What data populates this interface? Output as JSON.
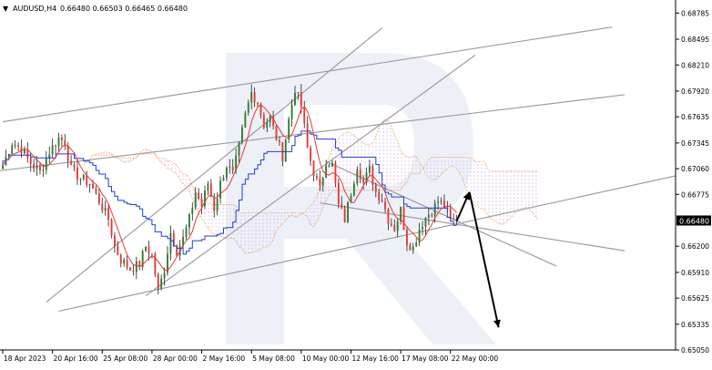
{
  "header": {
    "menu_glyph": "▼",
    "symbol_timeframe": "AUDUSD,H4",
    "ohlc": "0.66480 0.66503 0.66465 0.66480"
  },
  "price_axis": {
    "ticks": [
      "0.68785",
      "0.68495",
      "0.68210",
      "0.67920",
      "0.67635",
      "0.67345",
      "0.67060",
      "0.66775",
      "0.66200",
      "0.65910",
      "0.65625",
      "0.65335",
      "0.65050"
    ],
    "current_price_label": "0.66480"
  },
  "time_axis": {
    "ticks": [
      "18 Apr 2023",
      "20 Apr 16:00",
      "25 Apr 08:00",
      "28 Apr 00:00",
      "2 May 16:00",
      "5 May 08:00",
      "10 May 00:00",
      "12 May 16:00",
      "17 May 08:00",
      "22 May 00:00"
    ]
  },
  "colors": {
    "bull_candle": "#2e7d32",
    "bear_candle": "#e53935",
    "fast_ma": "#e53935",
    "slow_ma": "#1f3fd6",
    "cloud": "#f4a460",
    "cloud_dots": "#c8a8d8",
    "trend_lines": "#9e9e9e",
    "watermark": "#e3e8f2",
    "forecast_arrow": "#000000"
  },
  "chart_data": {
    "type": "candlestick",
    "symbol": "AUDUSD",
    "timeframe": "H4",
    "ylim": [
      0.6505,
      0.6893
    ],
    "x_ticks": [
      "18 Apr 2023",
      "20 Apr 16:00",
      "25 Apr 08:00",
      "28 Apr 00:00",
      "2 May 16:00",
      "5 May 08:00",
      "10 May 00:00",
      "12 May 16:00",
      "17 May 08:00",
      "22 May 00:00"
    ],
    "close_path": [
      [
        0,
        0.671
      ],
      [
        3,
        0.6735
      ],
      [
        6,
        0.6728
      ],
      [
        9,
        0.6712
      ],
      [
        12,
        0.6702
      ],
      [
        15,
        0.6725
      ],
      [
        18,
        0.674
      ],
      [
        20,
        0.6735
      ],
      [
        22,
        0.6705
      ],
      [
        25,
        0.6695
      ],
      [
        28,
        0.669
      ],
      [
        31,
        0.667
      ],
      [
        34,
        0.665
      ],
      [
        36,
        0.662
      ],
      [
        38,
        0.6605
      ],
      [
        41,
        0.6595
      ],
      [
        44,
        0.66
      ],
      [
        46,
        0.662
      ],
      [
        48,
        0.661
      ],
      [
        50,
        0.657
      ],
      [
        52,
        0.6595
      ],
      [
        54,
        0.6635
      ],
      [
        56,
        0.6615
      ],
      [
        58,
        0.6628
      ],
      [
        60,
        0.665
      ],
      [
        62,
        0.668
      ],
      [
        64,
        0.6665
      ],
      [
        66,
        0.669
      ],
      [
        68,
        0.6662
      ],
      [
        70,
        0.669
      ],
      [
        72,
        0.671
      ],
      [
        74,
        0.67
      ],
      [
        76,
        0.673
      ],
      [
        78,
        0.6765
      ],
      [
        80,
        0.679
      ],
      [
        82,
        0.678
      ],
      [
        84,
        0.6755
      ],
      [
        86,
        0.6762
      ],
      [
        88,
        0.674
      ],
      [
        90,
        0.672
      ],
      [
        92,
        0.676
      ],
      [
        94,
        0.6795
      ],
      [
        96,
        0.6775
      ],
      [
        98,
        0.6728
      ],
      [
        100,
        0.6702
      ],
      [
        102,
        0.6682
      ],
      [
        104,
        0.6715
      ],
      [
        106,
        0.671
      ],
      [
        108,
        0.6665
      ],
      [
        110,
        0.665
      ],
      [
        112,
        0.668
      ],
      [
        114,
        0.671
      ],
      [
        116,
        0.669
      ],
      [
        118,
        0.6705
      ],
      [
        120,
        0.668
      ],
      [
        122,
        0.6672
      ],
      [
        124,
        0.665
      ],
      [
        126,
        0.664
      ],
      [
        128,
        0.666
      ],
      [
        130,
        0.6625
      ],
      [
        132,
        0.6618
      ],
      [
        134,
        0.664
      ],
      [
        136,
        0.6652
      ],
      [
        138,
        0.666
      ],
      [
        140,
        0.667
      ],
      [
        142,
        0.6665
      ],
      [
        144,
        0.6648
      ],
      [
        146,
        0.665
      ]
    ],
    "forecast": {
      "from": 0.6648,
      "up_to": 0.668,
      "down_to": 0.653
    }
  }
}
